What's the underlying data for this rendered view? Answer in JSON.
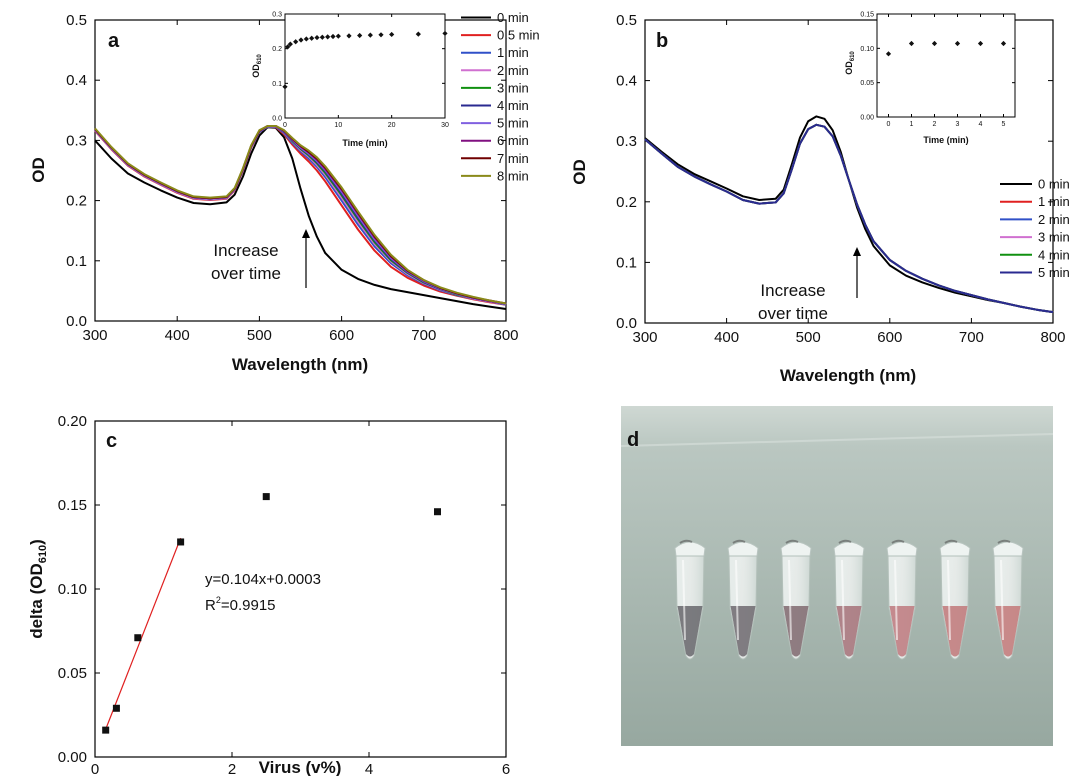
{
  "chart_data": [
    {
      "panel": "a",
      "type": "line",
      "xlabel": "Wavelength (nm)",
      "ylabel": "OD",
      "xlim": [
        300,
        800
      ],
      "ylim": [
        0.0,
        0.5
      ],
      "x_ticks": [
        "300",
        "400",
        "500",
        "600",
        "700",
        "800"
      ],
      "y_ticks": [
        "0.0",
        "0.1",
        "0.2",
        "0.3",
        "0.4",
        "0.5"
      ],
      "annotation": [
        "Increase",
        "over time"
      ],
      "legend_position": "top-right",
      "x": [
        300,
        320,
        340,
        360,
        380,
        400,
        420,
        440,
        460,
        470,
        480,
        490,
        500,
        510,
        520,
        530,
        540,
        550,
        560,
        570,
        580,
        600,
        620,
        640,
        660,
        680,
        700,
        720,
        740,
        760,
        780,
        800
      ],
      "series": [
        {
          "name": "0 min",
          "color": "#000000",
          "values": [
            0.3,
            0.27,
            0.245,
            0.23,
            0.217,
            0.205,
            0.196,
            0.194,
            0.197,
            0.21,
            0.24,
            0.278,
            0.308,
            0.322,
            0.321,
            0.305,
            0.27,
            0.22,
            0.175,
            0.14,
            0.113,
            0.085,
            0.07,
            0.06,
            0.053,
            0.048,
            0.043,
            0.038,
            0.033,
            0.028,
            0.024,
            0.02
          ]
        },
        {
          "name": "0.5 min",
          "color": "#e02020",
          "values": [
            0.316,
            0.285,
            0.258,
            0.24,
            0.226,
            0.213,
            0.203,
            0.201,
            0.203,
            0.217,
            0.25,
            0.288,
            0.314,
            0.323,
            0.322,
            0.31,
            0.293,
            0.278,
            0.265,
            0.25,
            0.232,
            0.192,
            0.152,
            0.117,
            0.09,
            0.072,
            0.059,
            0.049,
            0.042,
            0.036,
            0.031,
            0.027
          ]
        },
        {
          "name": "1 min",
          "color": "#3050c8",
          "values": [
            0.317,
            0.286,
            0.259,
            0.241,
            0.227,
            0.214,
            0.204,
            0.202,
            0.204,
            0.218,
            0.251,
            0.289,
            0.314,
            0.323,
            0.323,
            0.312,
            0.296,
            0.282,
            0.27,
            0.256,
            0.239,
            0.2,
            0.16,
            0.124,
            0.096,
            0.076,
            0.062,
            0.051,
            0.043,
            0.037,
            0.032,
            0.027
          ]
        },
        {
          "name": "2 min",
          "color": "#d070d0",
          "values": [
            0.317,
            0.286,
            0.259,
            0.241,
            0.227,
            0.214,
            0.204,
            0.202,
            0.204,
            0.218,
            0.251,
            0.289,
            0.315,
            0.323,
            0.323,
            0.313,
            0.298,
            0.284,
            0.273,
            0.259,
            0.243,
            0.205,
            0.165,
            0.128,
            0.099,
            0.078,
            0.063,
            0.052,
            0.044,
            0.037,
            0.032,
            0.028
          ]
        },
        {
          "name": "3 min",
          "color": "#109010",
          "values": [
            0.318,
            0.287,
            0.26,
            0.242,
            0.228,
            0.215,
            0.205,
            0.203,
            0.205,
            0.219,
            0.252,
            0.29,
            0.315,
            0.323,
            0.323,
            0.314,
            0.299,
            0.286,
            0.275,
            0.262,
            0.246,
            0.209,
            0.169,
            0.131,
            0.101,
            0.08,
            0.064,
            0.053,
            0.044,
            0.038,
            0.033,
            0.028
          ]
        },
        {
          "name": "4 min",
          "color": "#2a2a90",
          "values": [
            0.318,
            0.287,
            0.26,
            0.242,
            0.228,
            0.215,
            0.205,
            0.203,
            0.205,
            0.219,
            0.252,
            0.29,
            0.315,
            0.323,
            0.323,
            0.314,
            0.3,
            0.287,
            0.277,
            0.264,
            0.249,
            0.212,
            0.172,
            0.134,
            0.103,
            0.081,
            0.065,
            0.053,
            0.045,
            0.038,
            0.033,
            0.028
          ]
        },
        {
          "name": "5 min",
          "color": "#8060e0",
          "values": [
            0.318,
            0.287,
            0.26,
            0.242,
            0.228,
            0.215,
            0.205,
            0.203,
            0.205,
            0.219,
            0.252,
            0.29,
            0.315,
            0.323,
            0.323,
            0.315,
            0.301,
            0.288,
            0.278,
            0.266,
            0.251,
            0.215,
            0.175,
            0.136,
            0.105,
            0.082,
            0.066,
            0.054,
            0.045,
            0.038,
            0.033,
            0.028
          ]
        },
        {
          "name": "6 min",
          "color": "#801080",
          "values": [
            0.319,
            0.288,
            0.261,
            0.243,
            0.229,
            0.216,
            0.206,
            0.204,
            0.206,
            0.22,
            0.253,
            0.291,
            0.316,
            0.324,
            0.324,
            0.316,
            0.302,
            0.29,
            0.28,
            0.268,
            0.253,
            0.218,
            0.178,
            0.139,
            0.107,
            0.083,
            0.067,
            0.055,
            0.046,
            0.039,
            0.033,
            0.029
          ]
        },
        {
          "name": "7 min",
          "color": "#700000",
          "values": [
            0.319,
            0.288,
            0.261,
            0.243,
            0.229,
            0.216,
            0.206,
            0.204,
            0.206,
            0.22,
            0.253,
            0.291,
            0.316,
            0.324,
            0.324,
            0.316,
            0.303,
            0.291,
            0.281,
            0.27,
            0.255,
            0.22,
            0.18,
            0.141,
            0.108,
            0.084,
            0.068,
            0.055,
            0.046,
            0.039,
            0.034,
            0.029
          ]
        },
        {
          "name": "8 min",
          "color": "#8a8a1a",
          "values": [
            0.32,
            0.289,
            0.262,
            0.244,
            0.23,
            0.217,
            0.207,
            0.205,
            0.207,
            0.221,
            0.254,
            0.292,
            0.317,
            0.324,
            0.324,
            0.317,
            0.304,
            0.292,
            0.283,
            0.272,
            0.257,
            0.222,
            0.182,
            0.143,
            0.11,
            0.085,
            0.068,
            0.056,
            0.047,
            0.04,
            0.034,
            0.029
          ]
        }
      ],
      "inset": {
        "type": "scatter",
        "xlabel": "Time (min)",
        "ylabel": "OD610",
        "xlim": [
          0,
          30
        ],
        "ylim": [
          0.0,
          0.3
        ],
        "x_ticks": [
          "0",
          "10",
          "20",
          "30"
        ],
        "y_ticks": [
          "0.0",
          "0.1",
          "0.2",
          "0.3"
        ],
        "x": [
          0,
          0.5,
          1,
          2,
          3,
          4,
          5,
          6,
          7,
          8,
          9,
          10,
          12,
          14,
          16,
          18,
          20,
          25,
          30
        ],
        "y": [
          0.09,
          0.205,
          0.213,
          0.22,
          0.225,
          0.228,
          0.23,
          0.232,
          0.233,
          0.234,
          0.235,
          0.236,
          0.237,
          0.238,
          0.239,
          0.24,
          0.241,
          0.242,
          0.244
        ]
      }
    },
    {
      "panel": "b",
      "type": "line",
      "xlabel": "Wavelength (nm)",
      "ylabel": "OD",
      "xlim": [
        300,
        800
      ],
      "ylim": [
        0.0,
        0.5
      ],
      "x_ticks": [
        "300",
        "400",
        "500",
        "600",
        "700",
        "800"
      ],
      "y_ticks": [
        "0.0",
        "0.1",
        "0.2",
        "0.3",
        "0.4",
        "0.5"
      ],
      "annotation": [
        "Increase",
        "over time"
      ],
      "legend_position": "right",
      "x": [
        300,
        320,
        340,
        360,
        380,
        400,
        420,
        440,
        460,
        470,
        480,
        490,
        500,
        510,
        520,
        530,
        540,
        550,
        560,
        570,
        580,
        600,
        620,
        640,
        660,
        680,
        700,
        720,
        740,
        760,
        780,
        800
      ],
      "series": [
        {
          "name": "0 min",
          "color": "#000000",
          "values": [
            0.305,
            0.283,
            0.262,
            0.246,
            0.234,
            0.222,
            0.209,
            0.203,
            0.205,
            0.22,
            0.262,
            0.306,
            0.333,
            0.341,
            0.337,
            0.318,
            0.282,
            0.235,
            0.19,
            0.155,
            0.127,
            0.095,
            0.078,
            0.067,
            0.058,
            0.05,
            0.044,
            0.038,
            0.033,
            0.027,
            0.022,
            0.018
          ]
        },
        {
          "name": "1 min",
          "color": "#e02020",
          "values": [
            0.303,
            0.28,
            0.258,
            0.242,
            0.229,
            0.217,
            0.203,
            0.197,
            0.199,
            0.214,
            0.254,
            0.296,
            0.32,
            0.327,
            0.324,
            0.308,
            0.276,
            0.235,
            0.195,
            0.162,
            0.135,
            0.104,
            0.086,
            0.073,
            0.062,
            0.053,
            0.046,
            0.039,
            0.033,
            0.027,
            0.022,
            0.018
          ]
        },
        {
          "name": "2 min",
          "color": "#3050c8",
          "values": [
            0.303,
            0.28,
            0.258,
            0.242,
            0.229,
            0.217,
            0.203,
            0.197,
            0.199,
            0.214,
            0.254,
            0.296,
            0.32,
            0.327,
            0.324,
            0.308,
            0.276,
            0.235,
            0.195,
            0.162,
            0.135,
            0.104,
            0.086,
            0.073,
            0.062,
            0.053,
            0.046,
            0.039,
            0.033,
            0.027,
            0.022,
            0.018
          ]
        },
        {
          "name": "3 min",
          "color": "#d070d0",
          "values": [
            0.303,
            0.28,
            0.258,
            0.242,
            0.229,
            0.217,
            0.203,
            0.197,
            0.199,
            0.214,
            0.254,
            0.296,
            0.32,
            0.327,
            0.324,
            0.308,
            0.276,
            0.235,
            0.195,
            0.162,
            0.135,
            0.104,
            0.086,
            0.073,
            0.062,
            0.053,
            0.046,
            0.039,
            0.033,
            0.027,
            0.022,
            0.018
          ]
        },
        {
          "name": "4 min",
          "color": "#109010",
          "values": [
            0.303,
            0.28,
            0.258,
            0.242,
            0.229,
            0.217,
            0.203,
            0.197,
            0.199,
            0.214,
            0.254,
            0.296,
            0.32,
            0.327,
            0.324,
            0.308,
            0.276,
            0.235,
            0.195,
            0.162,
            0.135,
            0.104,
            0.086,
            0.073,
            0.062,
            0.053,
            0.046,
            0.039,
            0.033,
            0.027,
            0.022,
            0.018
          ]
        },
        {
          "name": "5 min",
          "color": "#2a2a90",
          "values": [
            0.303,
            0.28,
            0.258,
            0.242,
            0.229,
            0.217,
            0.203,
            0.197,
            0.199,
            0.214,
            0.254,
            0.296,
            0.32,
            0.327,
            0.324,
            0.308,
            0.276,
            0.235,
            0.195,
            0.162,
            0.135,
            0.104,
            0.086,
            0.073,
            0.062,
            0.053,
            0.046,
            0.039,
            0.033,
            0.027,
            0.022,
            0.018
          ]
        }
      ],
      "inset": {
        "type": "scatter",
        "xlabel": "Time (min)",
        "ylabel": "OD610",
        "xlim": [
          -0.5,
          5.5
        ],
        "ylim": [
          0.0,
          0.15
        ],
        "x_ticks": [
          "0",
          "1",
          "2",
          "3",
          "4",
          "5"
        ],
        "y_ticks": [
          "0.00",
          "0.05",
          "0.10",
          "0.15"
        ],
        "x": [
          0,
          1,
          2,
          3,
          4,
          5
        ],
        "y": [
          0.092,
          0.107,
          0.107,
          0.107,
          0.107,
          0.107
        ]
      }
    },
    {
      "panel": "c",
      "type": "scatter",
      "xlabel": "Virus (v%)",
      "ylabel": "delta (OD610)",
      "xlim": [
        0,
        6
      ],
      "ylim": [
        0.0,
        0.2
      ],
      "x_ticks": [
        "0",
        "2",
        "4",
        "6"
      ],
      "y_ticks": [
        "0.00",
        "0.05",
        "0.10",
        "0.15",
        "0.20"
      ],
      "x": [
        0.156,
        0.3125,
        0.625,
        1.25,
        2.5,
        5.0
      ],
      "y": [
        0.016,
        0.029,
        0.071,
        0.128,
        0.155,
        0.146
      ],
      "fit": {
        "color": "#e02020",
        "x_range": [
          0.156,
          1.25
        ],
        "slope": 0.104,
        "intercept": 0.0003
      },
      "fit_equation": "y=0.104x+0.0003",
      "fit_r2": "=0.9915"
    }
  ],
  "photo": {
    "label": "d",
    "tubes": [
      {
        "color": "#6e6e72"
      },
      {
        "color": "#747076"
      },
      {
        "color": "#857076"
      },
      {
        "color": "#a8787e"
      },
      {
        "color": "#c08084"
      },
      {
        "color": "#c27e80"
      },
      {
        "color": "#c47e7e"
      }
    ]
  }
}
